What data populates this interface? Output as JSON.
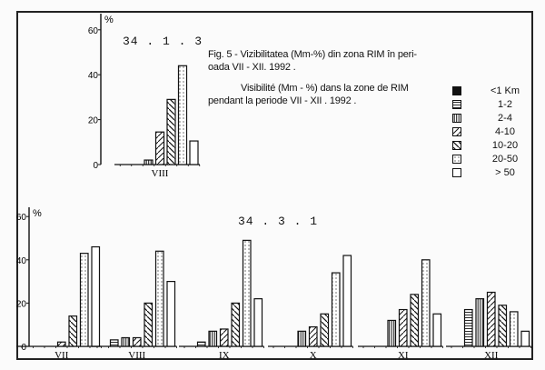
{
  "caption": {
    "ro_line1": "Fig. 5 - Vizibilitatea (Mm-%) din zona RIM în peri-",
    "ro_line2": "oada VII - XII. 1992 .",
    "fr_line1": "Visibilité (Mm - %) dans la zone de RIM",
    "fr_line2": "pendant la periode VII - XII . 1992 ."
  },
  "legend": [
    {
      "label": "<1  Km",
      "pattern": "solid"
    },
    {
      "label": "1-2",
      "pattern": "horizontal"
    },
    {
      "label": "2-4",
      "pattern": "vertical"
    },
    {
      "label": "4-10",
      "pattern": "diag-up"
    },
    {
      "label": "10-20",
      "pattern": "diag-down"
    },
    {
      "label": "20-50",
      "pattern": "dots"
    },
    {
      "label": "> 50",
      "pattern": "empty"
    }
  ],
  "chart_data": [
    {
      "type": "bar",
      "title": "34 . 1 . 3",
      "ylabel": "%",
      "ylim": [
        0,
        60
      ],
      "yticks": [
        0,
        20,
        40,
        60
      ],
      "categories": [
        "VIII"
      ],
      "series_labels": [
        "<1 Km",
        "1-2",
        "2-4",
        "4-10",
        "10-20",
        "20-50",
        "> 50"
      ],
      "values": {
        "VIII": [
          0,
          0,
          2,
          14.5,
          29,
          44,
          10.5
        ]
      },
      "grid": false
    },
    {
      "type": "bar",
      "title": "34 . 3 . 1",
      "ylabel": "%",
      "ylim": [
        0,
        60
      ],
      "yticks": [
        0,
        20,
        40,
        60
      ],
      "categories": [
        "VII",
        "VIII",
        "IX",
        "X",
        "XI",
        "XII"
      ],
      "series": [
        {
          "name": "<1 Km",
          "values": [
            0,
            0,
            0,
            0,
            0,
            0
          ]
        },
        {
          "name": "1-2",
          "values": [
            0,
            3,
            2,
            0,
            0,
            17
          ]
        },
        {
          "name": "2-4",
          "values": [
            0,
            4,
            7,
            7,
            12,
            22
          ]
        },
        {
          "name": "4-10",
          "values": [
            2,
            4,
            8,
            9,
            17,
            25
          ]
        },
        {
          "name": "10-20",
          "values": [
            14,
            20,
            20,
            15,
            24,
            19
          ]
        },
        {
          "name": "20-50",
          "values": [
            43,
            44,
            49,
            34,
            40,
            16
          ]
        },
        {
          "name": "> 50",
          "values": [
            46,
            30,
            22,
            42,
            15,
            7
          ]
        }
      ],
      "grid": false
    }
  ]
}
